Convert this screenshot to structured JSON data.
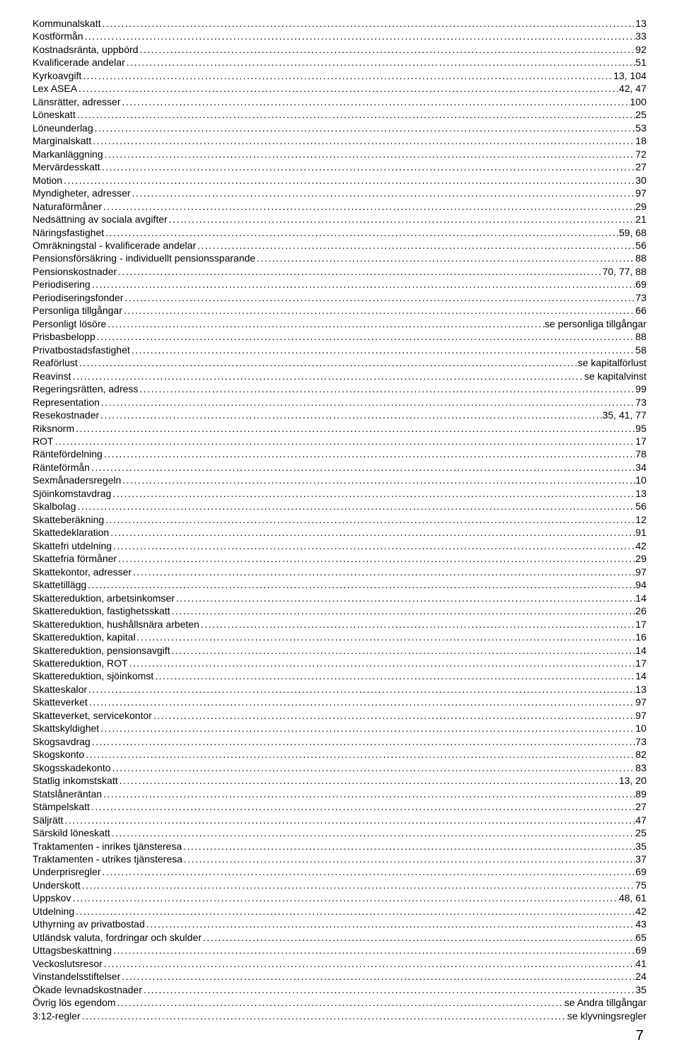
{
  "pageNumber": "7",
  "entries": [
    {
      "label": "Kommunalskatt",
      "page": "13"
    },
    {
      "label": "Kostförmån",
      "page": "33"
    },
    {
      "label": "Kostnadsränta, uppbörd",
      "page": "92"
    },
    {
      "label": "Kvalificerade andelar",
      "page": "51"
    },
    {
      "label": "Kyrkoavgift",
      "page": "13, 104"
    },
    {
      "label": "Lex ASEA",
      "page": "42, 47"
    },
    {
      "label": "Länsrätter, adresser",
      "page": "100"
    },
    {
      "label": "Löneskatt",
      "page": "25"
    },
    {
      "label": "Löneunderlag",
      "page": "53"
    },
    {
      "label": "Marginalskatt",
      "page": "18"
    },
    {
      "label": "Markanläggning",
      "page": "72"
    },
    {
      "label": "Mervärdesskatt",
      "page": "27"
    },
    {
      "label": "Motion",
      "page": "30"
    },
    {
      "label": "Myndigheter, adresser",
      "page": "97"
    },
    {
      "label": "Naturaförmåner",
      "page": "29"
    },
    {
      "label": "Nedsättning av sociala avgifter",
      "page": "21"
    },
    {
      "label": "Näringsfastighet",
      "page": "59, 68"
    },
    {
      "label": "Omräkningstal - kvalificerade andelar",
      "page": "56"
    },
    {
      "label": "Pensionsförsäkring - individuellt pensionssparande",
      "page": "88"
    },
    {
      "label": "Pensionskostnader",
      "page": "70, 77, 88"
    },
    {
      "label": "Periodisering",
      "page": "69"
    },
    {
      "label": "Periodiseringsfonder",
      "page": "73"
    },
    {
      "label": "Personliga tillgångar",
      "page": "66"
    },
    {
      "label": "Personligt lösöre",
      "page": "se personliga tillgångar"
    },
    {
      "label": "Prisbasbelopp",
      "page": "88"
    },
    {
      "label": "Privatbostadsfastighet",
      "page": "58"
    },
    {
      "label": "Reaförlust",
      "page": "se kapitalförlust"
    },
    {
      "label": "Reavinst",
      "page": "se kapitalvinst"
    },
    {
      "label": "Regeringsrätten, adress",
      "page": "99"
    },
    {
      "label": "Representation",
      "page": "73"
    },
    {
      "label": "Resekostnader",
      "page": "35, 41, 77"
    },
    {
      "label": "Riksnorm",
      "page": "95"
    },
    {
      "label": "ROT",
      "page": "17"
    },
    {
      "label": "Räntefördelning",
      "page": "78"
    },
    {
      "label": "Ränteförmån",
      "page": "34"
    },
    {
      "label": "Sexmånadersregeln",
      "page": "10"
    },
    {
      "label": "Sjöinkomstavdrag",
      "page": "13"
    },
    {
      "label": "Skalbolag",
      "page": "56"
    },
    {
      "label": "Skatteberäkning",
      "page": "12"
    },
    {
      "label": "Skattedeklaration",
      "page": "91"
    },
    {
      "label": "Skattefri utdelning",
      "page": "42"
    },
    {
      "label": "Skattefria förmåner",
      "page": "29"
    },
    {
      "label": "Skattekontor, adresser",
      "page": "97"
    },
    {
      "label": "Skattetillägg",
      "page": "94"
    },
    {
      "label": "Skattereduktion, arbetsinkomser",
      "page": "14"
    },
    {
      "label": "Skattereduktion, fastighetsskatt",
      "page": "26"
    },
    {
      "label": "Skattereduktion, hushållsnära arbeten",
      "page": "17"
    },
    {
      "label": "Skattereduktion, kapital",
      "page": "16"
    },
    {
      "label": "Skattereduktion, pensionsavgift",
      "page": "14"
    },
    {
      "label": "Skattereduktion, ROT",
      "page": "17"
    },
    {
      "label": "Skattereduktion, sjöinkomst",
      "page": "14"
    },
    {
      "label": "Skatteskalor",
      "page": "13"
    },
    {
      "label": "Skatteverket",
      "page": "97"
    },
    {
      "label": "Skatteverket, servicekontor",
      "page": "97"
    },
    {
      "label": "Skattskyldighet",
      "page": "10"
    },
    {
      "label": "Skogsavdrag",
      "page": "73"
    },
    {
      "label": "Skogskonto",
      "page": "82"
    },
    {
      "label": "Skogsskadekonto",
      "page": "83"
    },
    {
      "label": "Statlig inkomstskatt",
      "page": "13, 20"
    },
    {
      "label": "Statslåneräntan",
      "page": "89"
    },
    {
      "label": "Stämpelskatt",
      "page": "27"
    },
    {
      "label": "Säljrätt",
      "page": "47"
    },
    {
      "label": "Särskild löneskatt",
      "page": "25"
    },
    {
      "label": "Traktamenten - inrikes tjänsteresa",
      "page": "35"
    },
    {
      "label": "Traktamenten - utrikes tjänsteresa",
      "page": "37"
    },
    {
      "label": "Underprisregler",
      "page": "69"
    },
    {
      "label": "Underskott",
      "page": "75"
    },
    {
      "label": "Uppskov",
      "page": "48, 61"
    },
    {
      "label": "Utdelning",
      "page": "42"
    },
    {
      "label": "Uthyrning av privatbostad",
      "page": "43"
    },
    {
      "label": "Utländsk valuta, fordringar och skulder",
      "page": "65"
    },
    {
      "label": "Uttagsbeskattning",
      "page": "69"
    },
    {
      "label": "Veckoslutsresor",
      "page": "41"
    },
    {
      "label": "Vinstandelsstiftelser",
      "page": "24"
    },
    {
      "label": "Ökade levnadskostnader",
      "page": "35"
    },
    {
      "label": "Övrig lös egendom",
      "page": "se Andra tillgångar"
    },
    {
      "label": "3:12-regler",
      "page": "se klyvningsregler"
    }
  ]
}
